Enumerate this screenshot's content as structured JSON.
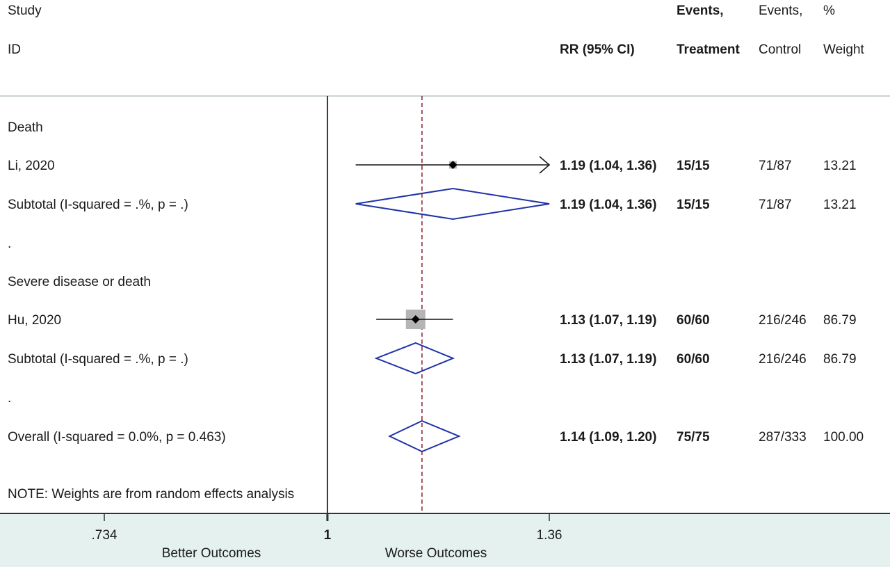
{
  "header": {
    "study_line1": "Study",
    "study_line2": "ID",
    "rr_label": "RR (95% CI)",
    "treat_line1": "Events,",
    "treat_line2": "Treatment",
    "control_line1": "Events,",
    "control_line2": "Control",
    "weight_line1": "%",
    "weight_line2": "Weight"
  },
  "chart_data": {
    "type": "forest",
    "x_scale": "log",
    "xlim": [
      0.734,
      1.36
    ],
    "null_value": 1,
    "overall_rr": 1.14,
    "x_ticks": [
      {
        "value": 0.734,
        "label": ".734"
      },
      {
        "value": 1,
        "label": "1"
      },
      {
        "value": 1.36,
        "label": "1.36"
      }
    ],
    "x_direction_labels": {
      "left": "Better Outcomes",
      "right": "Worse Outcomes"
    },
    "rows": [
      {
        "kind": "group",
        "label": "Death"
      },
      {
        "kind": "study",
        "label": "Li, 2020",
        "rr": 1.19,
        "lo": 1.04,
        "hi": 1.36,
        "rr_text": "1.19 (1.04, 1.36)",
        "treat": "15/15",
        "control": "71/87",
        "weight": "13.21",
        "weight_value": 13.21,
        "arrow_right": true
      },
      {
        "kind": "subtotal",
        "label": "Subtotal  (I-squared = .%, p = .)",
        "rr": 1.19,
        "lo": 1.04,
        "hi": 1.36,
        "rr_text": "1.19 (1.04, 1.36)",
        "treat": "15/15",
        "control": "71/87",
        "weight": "13.21"
      },
      {
        "kind": "spacer",
        "label": "."
      },
      {
        "kind": "group",
        "label": "Severe disease or death"
      },
      {
        "kind": "study",
        "label": "Hu, 2020",
        "rr": 1.13,
        "lo": 1.07,
        "hi": 1.19,
        "rr_text": "1.13 (1.07, 1.19)",
        "treat": "60/60",
        "control": "216/246",
        "weight": "86.79",
        "weight_value": 86.79,
        "arrow_right": false
      },
      {
        "kind": "subtotal",
        "label": "Subtotal  (I-squared = .%, p = .)",
        "rr": 1.13,
        "lo": 1.07,
        "hi": 1.19,
        "rr_text": "1.13 (1.07, 1.19)",
        "treat": "60/60",
        "control": "216/246",
        "weight": "86.79"
      },
      {
        "kind": "spacer",
        "label": "."
      },
      {
        "kind": "overall",
        "label": "Overall  (I-squared = 0.0%, p = 0.463)",
        "rr": 1.14,
        "lo": 1.09,
        "hi": 1.2,
        "rr_text": "1.14 (1.09, 1.20)",
        "treat": "75/75",
        "control": "287/333",
        "weight": "100.00"
      }
    ],
    "note": "NOTE: Weights are from random effects analysis",
    "colors": {
      "background": "#ffffff",
      "axis_band": "#e4f1ee",
      "axis_line": "#333333",
      "diamond": "#1f33a8",
      "marker_box": "#b5b5b5",
      "ci_line": "#111111",
      "ref_line": "#8a1c2b",
      "separator": "#b8c4c4",
      "text": "#1a1a1a"
    }
  }
}
